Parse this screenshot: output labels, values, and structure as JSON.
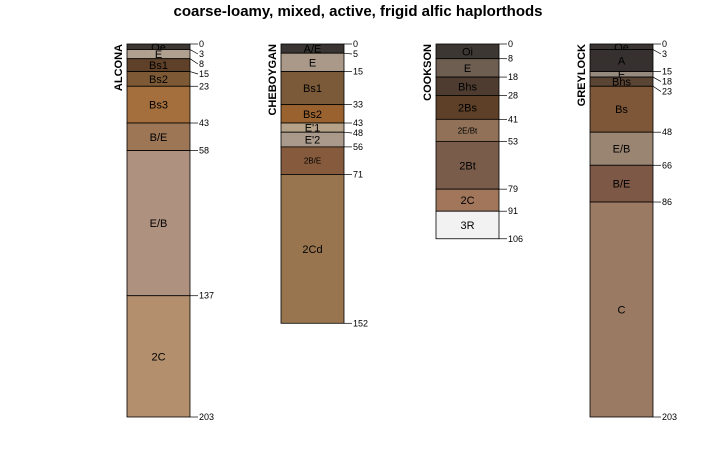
{
  "chart_data": {
    "type": "soil-profile",
    "title": "coarse-loamy, mixed, active, frigid alfic haplorthods",
    "depth_unit": "cm",
    "depth_range": [
      0,
      203
    ],
    "profiles": [
      {
        "id": "alcona",
        "name": "ALCONA",
        "horizons": [
          {
            "name": "Oe",
            "top": 0,
            "bottom": 3,
            "color": "#3c3733"
          },
          {
            "name": "E",
            "top": 3,
            "bottom": 8,
            "color": "#b0a090"
          },
          {
            "name": "Bs1",
            "top": 8,
            "bottom": 15,
            "color": "#5e4128"
          },
          {
            "name": "Bs2",
            "top": 15,
            "bottom": 23,
            "color": "#7d5a35"
          },
          {
            "name": "Bs3",
            "top": 23,
            "bottom": 43,
            "color": "#a46f3d"
          },
          {
            "name": "B/E",
            "top": 43,
            "bottom": 58,
            "color": "#9d7656"
          },
          {
            "name": "E/B",
            "top": 58,
            "bottom": 137,
            "color": "#af917f"
          },
          {
            "name": "2C",
            "top": 137,
            "bottom": 203,
            "color": "#b48f6d"
          }
        ]
      },
      {
        "id": "cheboygan",
        "name": "CHEBOYGAN",
        "horizons": [
          {
            "name": "A/E",
            "top": 0,
            "bottom": 5,
            "color": "#3a3532"
          },
          {
            "name": "E",
            "top": 5,
            "bottom": 15,
            "color": "#aa9988"
          },
          {
            "name": "Bs1",
            "top": 15,
            "bottom": 33,
            "color": "#7b5a3a"
          },
          {
            "name": "Bs2",
            "top": 33,
            "bottom": 43,
            "color": "#99622f"
          },
          {
            "name": "E'1",
            "top": 43,
            "bottom": 48,
            "color": "#b5a288"
          },
          {
            "name": "E'2",
            "top": 48,
            "bottom": 56,
            "color": "#a99a8c"
          },
          {
            "name": "2B/E",
            "top": 56,
            "bottom": 71,
            "color": "#865b3d",
            "small": true
          },
          {
            "name": "2Cd",
            "top": 71,
            "bottom": 152,
            "color": "#98754f"
          }
        ]
      },
      {
        "id": "cookson",
        "name": "COOKSON",
        "horizons": [
          {
            "name": "Oi",
            "top": 0,
            "bottom": 8,
            "color": "#3d3733"
          },
          {
            "name": "E",
            "top": 8,
            "bottom": 18,
            "color": "#6e5e52"
          },
          {
            "name": "Bhs",
            "top": 18,
            "bottom": 28,
            "color": "#4e3c30"
          },
          {
            "name": "2Bs",
            "top": 28,
            "bottom": 41,
            "color": "#5d4027"
          },
          {
            "name": "2E/Bt",
            "top": 41,
            "bottom": 53,
            "color": "#917258",
            "small": true
          },
          {
            "name": "2Bt",
            "top": 53,
            "bottom": 79,
            "color": "#7a5c4b"
          },
          {
            "name": "2C",
            "top": 79,
            "bottom": 91,
            "color": "#a1765a"
          },
          {
            "name": "3R",
            "top": 91,
            "bottom": 106,
            "color": "#f2f2f2"
          }
        ]
      },
      {
        "id": "greylock",
        "name": "GREYLOCK",
        "horizons": [
          {
            "name": "Oe",
            "top": 0,
            "bottom": 3,
            "color": "#3a3532"
          },
          {
            "name": "A",
            "top": 3,
            "bottom": 15,
            "color": "#36312e"
          },
          {
            "name": "E",
            "top": 15,
            "bottom": 18,
            "color": "#978a7e"
          },
          {
            "name": "Bhs",
            "top": 18,
            "bottom": 23,
            "color": "#5a4535"
          },
          {
            "name": "Bs",
            "top": 23,
            "bottom": 48,
            "color": "#7d5737"
          },
          {
            "name": "E/B",
            "top": 48,
            "bottom": 66,
            "color": "#9a8572"
          },
          {
            "name": "B/E",
            "top": 66,
            "bottom": 86,
            "color": "#7d5846"
          },
          {
            "name": "C",
            "top": 86,
            "bottom": 203,
            "color": "#9a7a63"
          }
        ]
      }
    ]
  }
}
